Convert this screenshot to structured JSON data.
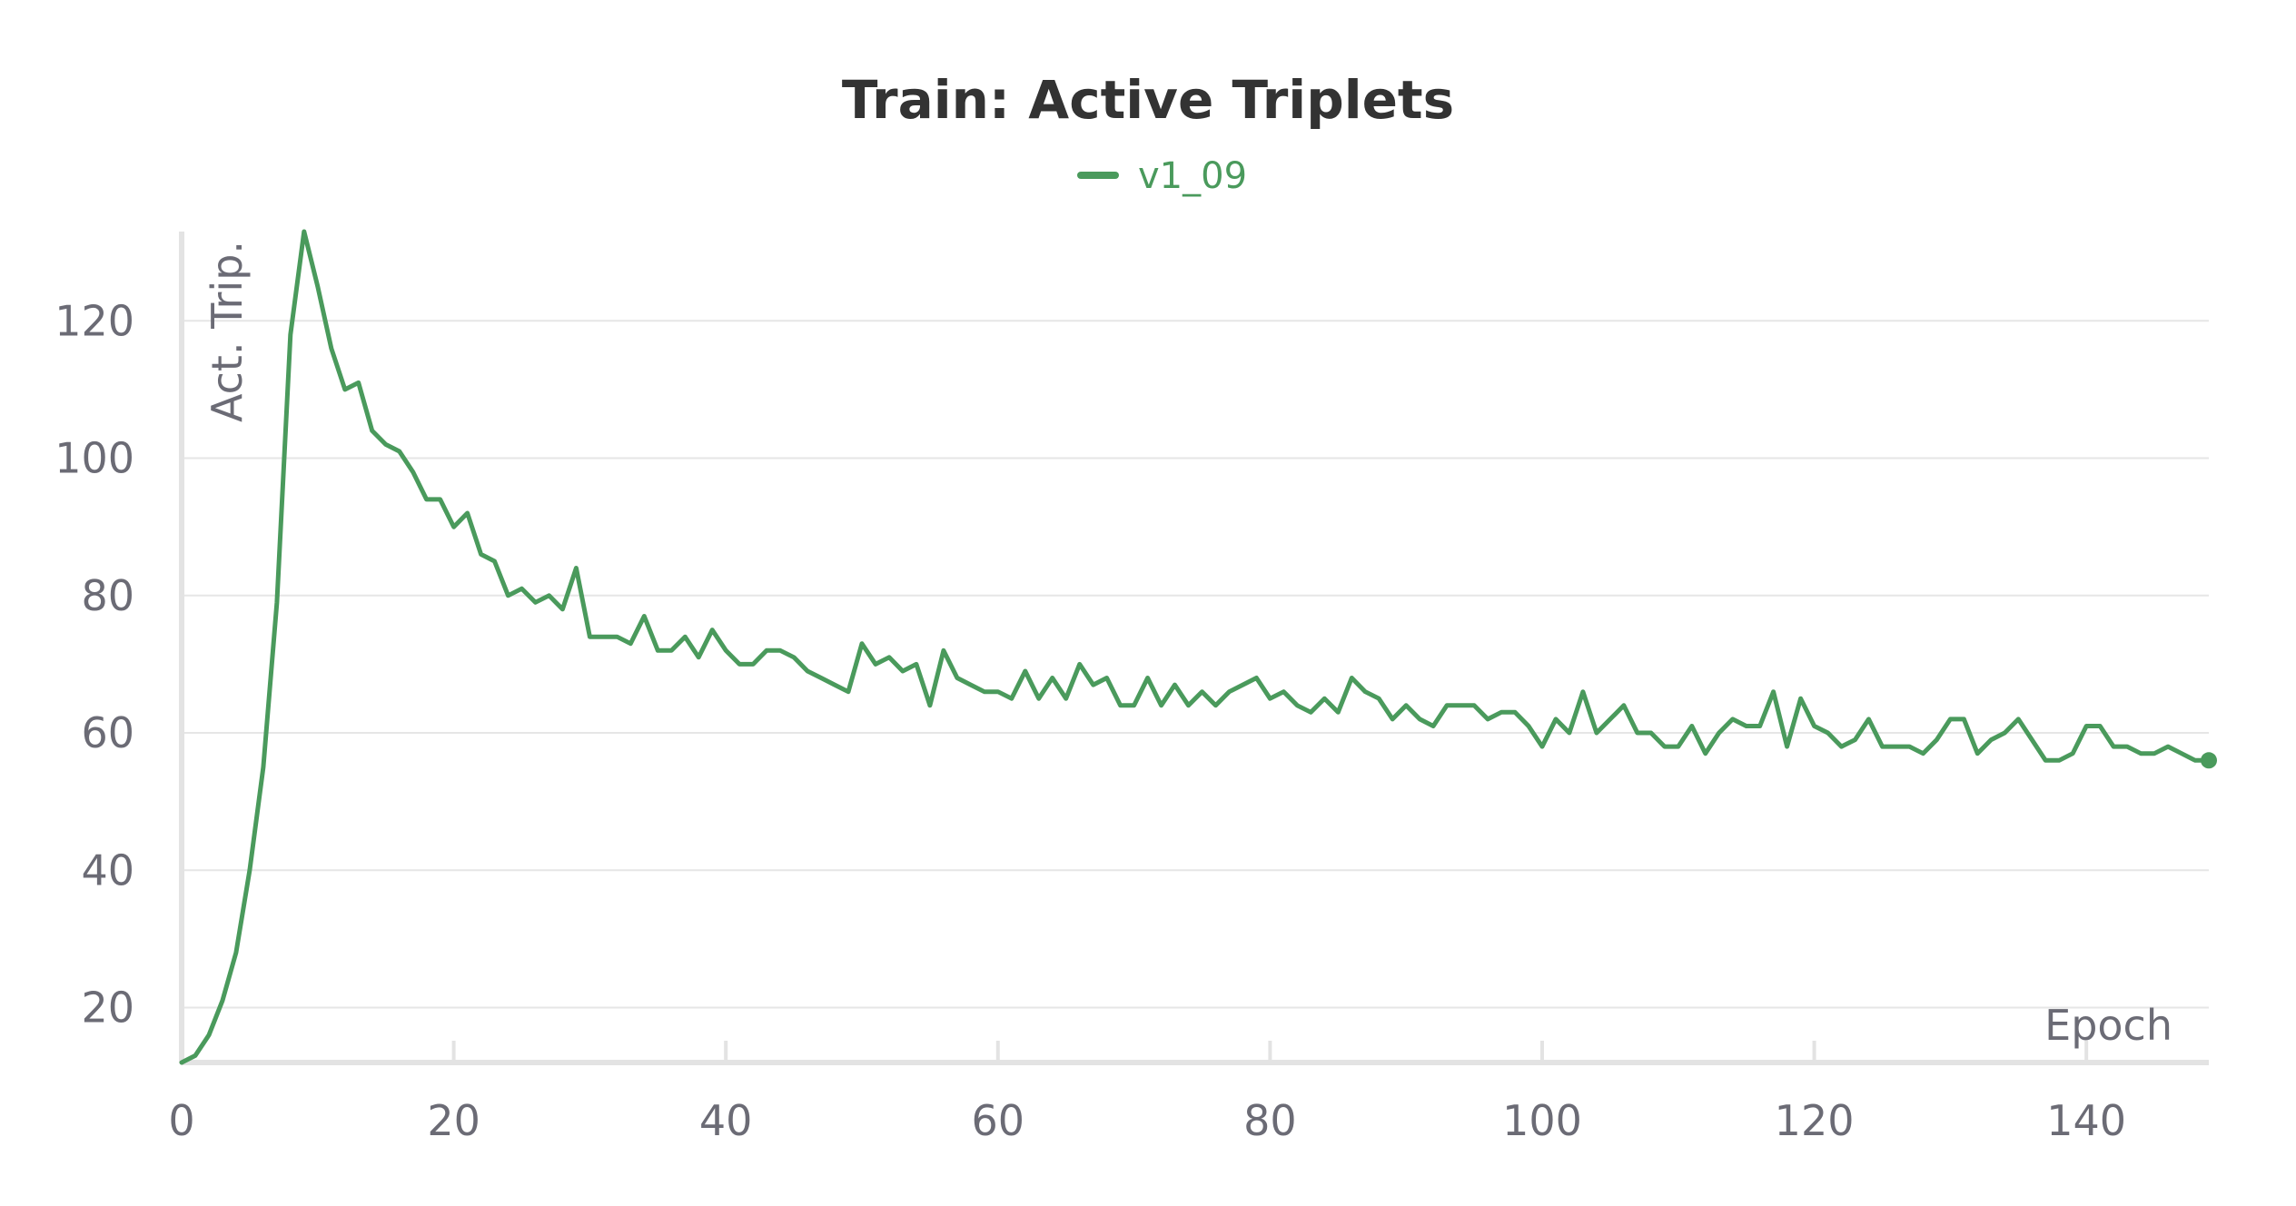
{
  "chart_data": {
    "type": "line",
    "title": "Train: Active Triplets",
    "xlabel": "Epoch",
    "ylabel": "Act. Trip.",
    "xlim": [
      0,
      149
    ],
    "ylim": [
      12,
      133
    ],
    "x_ticks": [
      0,
      20,
      40,
      60,
      80,
      100,
      120,
      140
    ],
    "y_ticks": [
      20,
      40,
      60,
      80,
      100,
      120
    ],
    "grid": true,
    "legend_position": "top-center",
    "series": [
      {
        "name": "v1_09",
        "color": "#4a9a5c",
        "x": [
          0,
          1,
          2,
          3,
          4,
          5,
          6,
          7,
          8,
          9,
          10,
          11,
          12,
          13,
          14,
          15,
          16,
          17,
          18,
          19,
          20,
          21,
          22,
          23,
          24,
          25,
          26,
          27,
          28,
          29,
          30,
          31,
          32,
          33,
          34,
          35,
          36,
          37,
          38,
          39,
          40,
          41,
          42,
          43,
          44,
          45,
          46,
          47,
          48,
          49,
          50,
          51,
          52,
          53,
          54,
          55,
          56,
          57,
          58,
          59,
          60,
          61,
          62,
          63,
          64,
          65,
          66,
          67,
          68,
          69,
          70,
          71,
          72,
          73,
          74,
          75,
          76,
          77,
          78,
          79,
          80,
          81,
          82,
          83,
          84,
          85,
          86,
          87,
          88,
          89,
          90,
          91,
          92,
          93,
          94,
          95,
          96,
          97,
          98,
          99,
          100,
          101,
          102,
          103,
          104,
          105,
          106,
          107,
          108,
          109,
          110,
          111,
          112,
          113,
          114,
          115,
          116,
          117,
          118,
          119,
          120,
          121,
          122,
          123,
          124,
          125,
          126,
          127,
          128,
          129,
          130,
          131,
          132,
          133,
          134,
          135,
          136,
          137,
          138,
          139,
          140,
          141,
          142,
          143,
          144,
          145,
          146,
          147,
          148,
          149
        ],
        "y": [
          12,
          13,
          16,
          21,
          28,
          40,
          55,
          79,
          118,
          133,
          125,
          116,
          110,
          111,
          104,
          102,
          101,
          98,
          94,
          94,
          90,
          92,
          86,
          85,
          80,
          81,
          79,
          80,
          78,
          84,
          74,
          74,
          74,
          73,
          77,
          72,
          72,
          74,
          71,
          75,
          72,
          70,
          70,
          72,
          72,
          71,
          69,
          68,
          67,
          66,
          73,
          70,
          71,
          69,
          70,
          64,
          72,
          68,
          67,
          66,
          66,
          65,
          69,
          65,
          68,
          65,
          70,
          67,
          68,
          64,
          64,
          68,
          64,
          67,
          64,
          66,
          64,
          66,
          67,
          68,
          65,
          66,
          64,
          63,
          65,
          63,
          68,
          66,
          65,
          62,
          64,
          62,
          61,
          64,
          64,
          64,
          62,
          63,
          63,
          61,
          58,
          62,
          60,
          66,
          60,
          62,
          64,
          60,
          60,
          58,
          58,
          61,
          57,
          60,
          62,
          61,
          61,
          66,
          58,
          65,
          61,
          60,
          58,
          59,
          62,
          58,
          58,
          58,
          57,
          59,
          62,
          62,
          57,
          59,
          60,
          62,
          59,
          56,
          56,
          57,
          61,
          61,
          58,
          58,
          57,
          57,
          58,
          57,
          56,
          56
        ]
      }
    ]
  }
}
